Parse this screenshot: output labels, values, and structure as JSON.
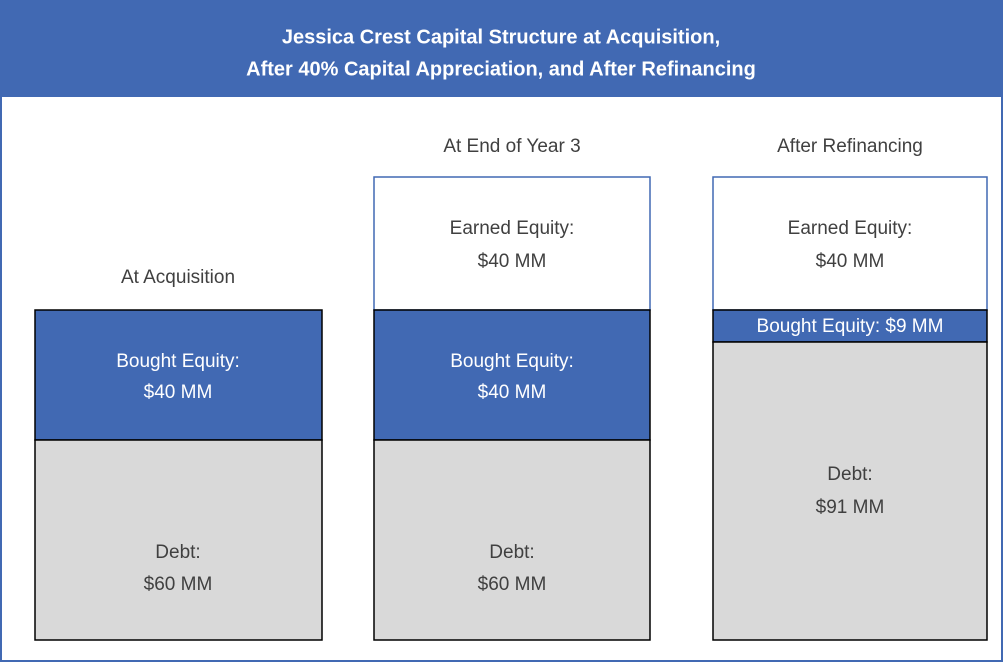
{
  "header": {
    "title": [
      "Jessica Crest Capital Structure at Acquisition,",
      "After 40% Capital Appreciation, and After Refinancing"
    ]
  },
  "columns": [
    {
      "label": "At Acquisition",
      "segments": [
        {
          "lines": [
            "Bought Equity:",
            "$40 MM"
          ]
        },
        {
          "lines": [
            "Debt:",
            "$60 MM"
          ]
        }
      ]
    },
    {
      "label": "At End of Year 3",
      "segments": [
        {
          "lines": [
            "Earned Equity:",
            "$40 MM"
          ]
        },
        {
          "lines": [
            "Bought Equity:",
            "$40 MM"
          ]
        },
        {
          "lines": [
            "Debt:",
            "$60 MM"
          ]
        }
      ]
    },
    {
      "label": "After Refinancing",
      "segments": [
        {
          "lines": [
            "Earned Equity:",
            "$40 MM"
          ]
        },
        {
          "lines": [
            "Bought Equity: $9 MM"
          ]
        },
        {
          "lines": [
            "Debt:",
            "$91 MM"
          ]
        }
      ]
    }
  ]
}
